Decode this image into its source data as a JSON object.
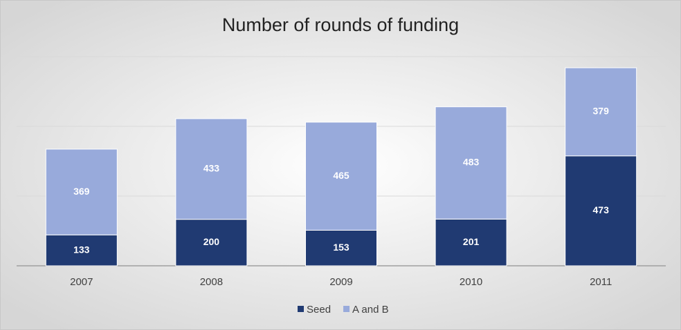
{
  "chart_data": {
    "type": "stacked_bar",
    "title": "Number of rounds of funding",
    "categories": [
      "2007",
      "2008",
      "2009",
      "2010",
      "2011"
    ],
    "series": [
      {
        "name": "Seed",
        "color": "#203a72",
        "values": [
          133,
          200,
          153,
          201,
          473
        ]
      },
      {
        "name": "A and B",
        "color": "#98aadb",
        "values": [
          369,
          433,
          465,
          483,
          379
        ]
      }
    ],
    "ylim": [
      0,
      900
    ],
    "yticks": [
      0,
      300,
      600,
      900
    ],
    "grid": true,
    "legend": "bottom"
  }
}
